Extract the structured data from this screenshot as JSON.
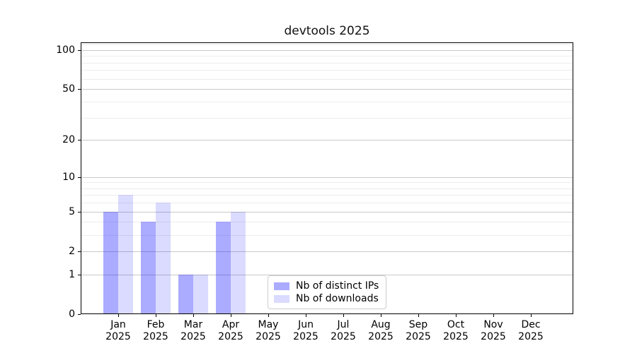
{
  "figure": {
    "background": "#ffffff"
  },
  "chart_data": {
    "type": "bar",
    "title": "devtools 2025",
    "x_categories": [
      "Jan",
      "Feb",
      "Mar",
      "Apr",
      "May",
      "Jun",
      "Jul",
      "Aug",
      "Sep",
      "Oct",
      "Nov",
      "Dec"
    ],
    "x_sublabel": "2025",
    "series": [
      {
        "name": "Nb of distinct IPs",
        "color": "rgba(0,0,255,0.33)",
        "values": [
          5,
          4,
          1,
          4,
          0,
          0,
          0,
          0,
          0,
          0,
          0,
          0
        ]
      },
      {
        "name": "Nb of downloads",
        "color": "rgba(0,0,255,0.14)",
        "values": [
          7,
          6,
          1,
          5,
          0,
          0,
          0,
          0,
          0,
          0,
          0,
          0
        ]
      }
    ],
    "yscale": "log1p",
    "ylim": [
      0,
      114.3
    ],
    "xlim": [
      -1,
      12.13
    ],
    "y_major_ticks": [
      0,
      1,
      2,
      5,
      10,
      20,
      50,
      100
    ],
    "y_minor_ticks": [
      3,
      4,
      6,
      7,
      8,
      9,
      30,
      40,
      60,
      70,
      80,
      90,
      110
    ],
    "grid": true,
    "bar_width": 0.4,
    "legend_position": "lower center",
    "colors": {
      "grid_major": "#c9c9c9",
      "grid_minor": "#ededed",
      "spine": "#000000"
    }
  }
}
